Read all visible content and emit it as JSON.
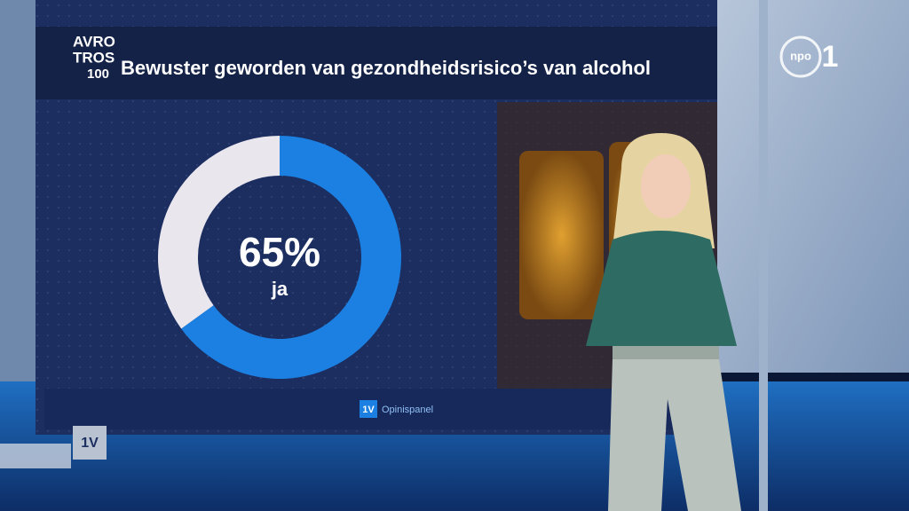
{
  "chart_data": {
    "type": "donut",
    "title": "Bewuster geworden van gezondheidsrisico’s van alcohol",
    "categories": [
      "ja",
      null
    ],
    "values": [
      65,
      35
    ],
    "value_labels": [
      "65%",
      null
    ],
    "colors": [
      "#1b80e2",
      "#e9e6ee"
    ]
  },
  "logo": [
    "AVRO",
    "TROS",
    "100"
  ],
  "source": {
    "badge": "1V",
    "text": "Opinispanel"
  },
  "corner_badge": "1V",
  "channel_logo": [
    "npo",
    "1"
  ]
}
